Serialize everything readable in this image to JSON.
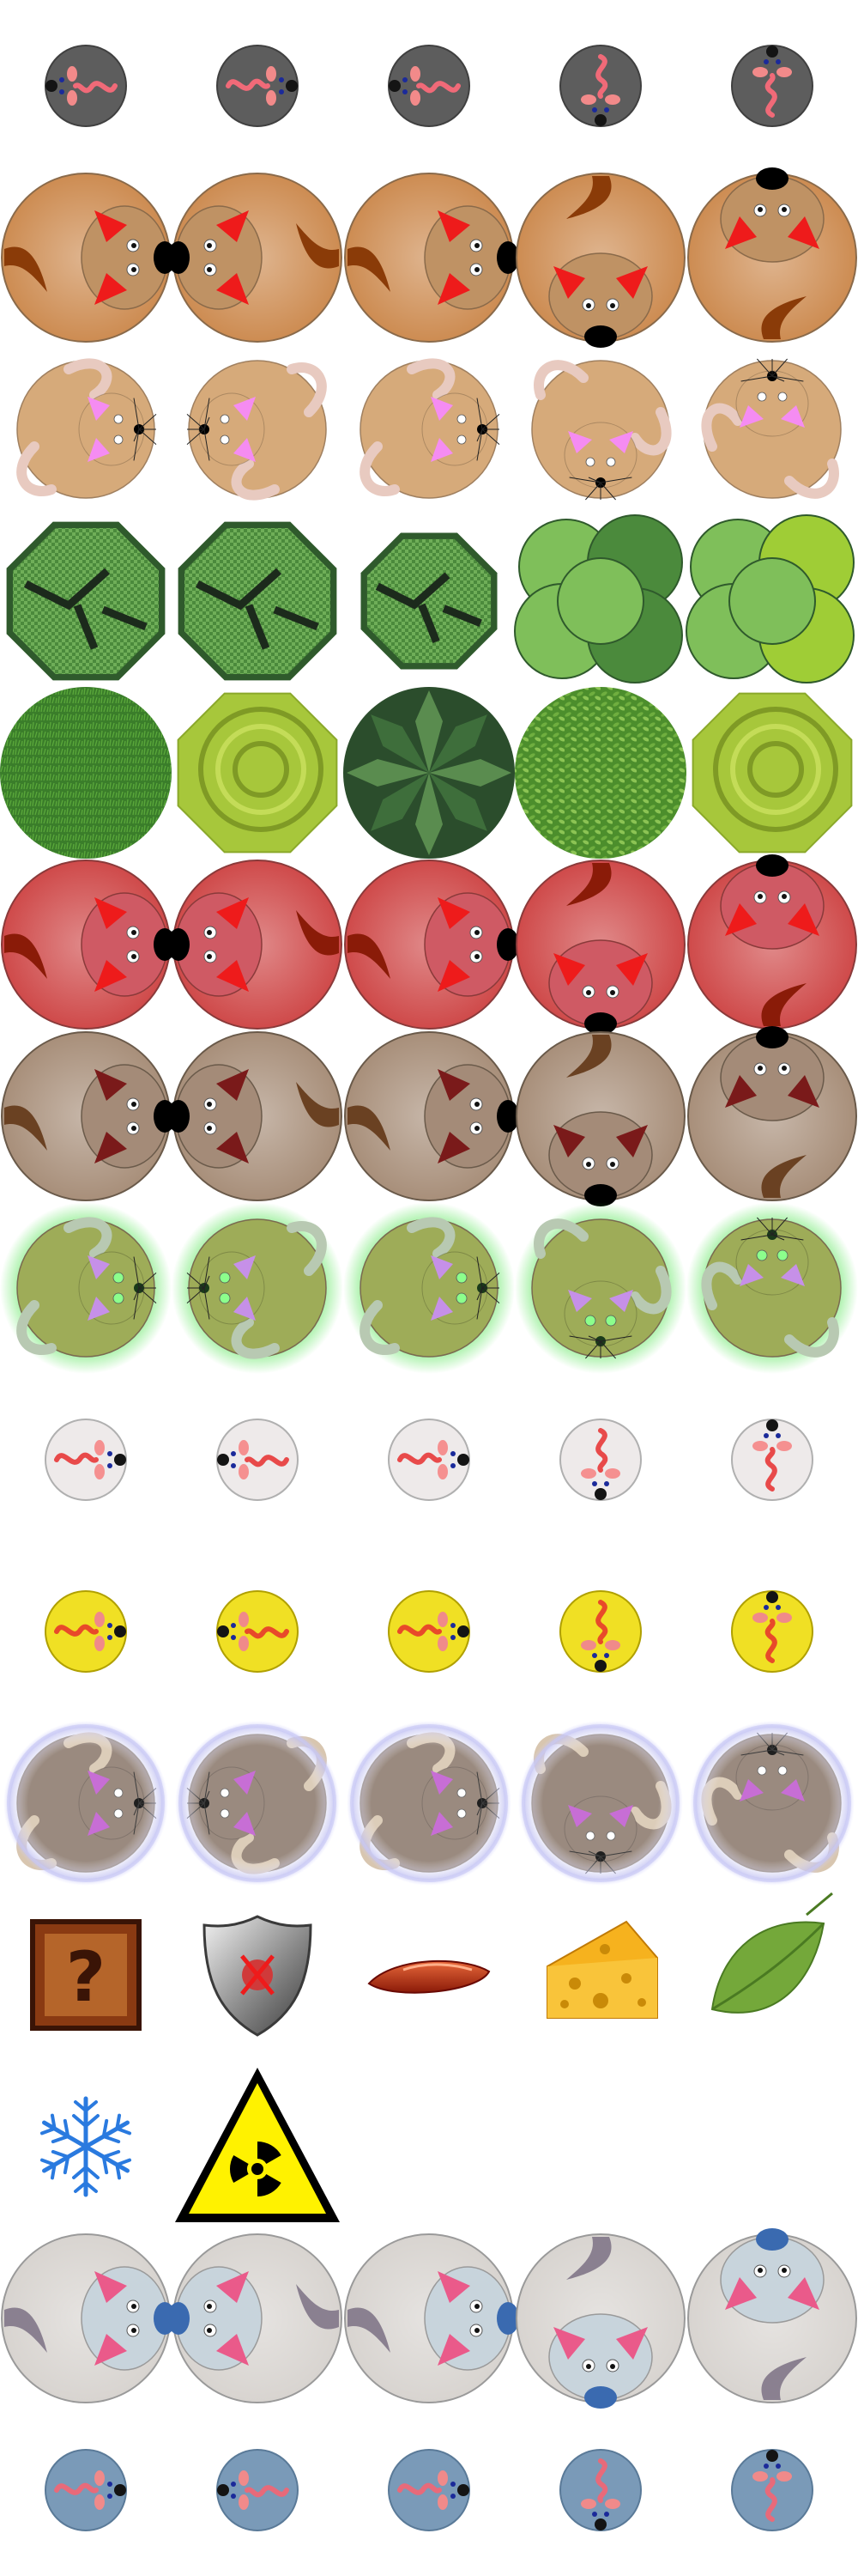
{
  "sheet": {
    "columns": 5,
    "rows": [
      {
        "name": "small-gray-mouse",
        "kind": "token-small",
        "colors": {
          "body": "#5d5d5d",
          "tail": "#f06a78",
          "ear": "#f28a8a",
          "eye": "#1b2a9a",
          "nose": "#141414",
          "rim": "#404040"
        },
        "frames": [
          "left",
          "right",
          "left",
          "down",
          "up"
        ]
      },
      {
        "name": "large-orange-hamster",
        "kind": "token-large",
        "colors": {
          "body": "#cd8c52",
          "head": "#bf9264",
          "ear": "#ee1b1b",
          "nose": "#000000",
          "tail": "#8a3b08",
          "rim": "#8a6a4a"
        },
        "frames": [
          "right",
          "left",
          "right",
          "down",
          "up"
        ]
      },
      {
        "name": "tan-mouse-whiskers",
        "kind": "mouse",
        "colors": {
          "body": "#d6aa7a",
          "ear": "#f58cf2",
          "tail": "#e8cac0",
          "nose": "#000000",
          "rim": "#a08060"
        },
        "frames": [
          "right",
          "left",
          "right",
          "down",
          "up"
        ]
      },
      {
        "name": "cabbage-plants",
        "kind": "plant",
        "colors": {
          "dark": "#2f5a2c",
          "mid": "#4b8a3c",
          "light": "#7fbf5a",
          "lime": "#9fcd36"
        },
        "frames": [
          "cabbage",
          "cabbage",
          "cabbage-small",
          "lettuce",
          "lettuce-bright"
        ]
      },
      {
        "name": "leafy-greens",
        "kind": "plant",
        "colors": {
          "grass": "#3a7d2a",
          "lime": "#a7c73b",
          "dark": "#2b4d2c",
          "leaf": "#5c9e35"
        },
        "frames": [
          "grass",
          "lime-swirl",
          "dark-leaf",
          "leaf-pile",
          "lime-head"
        ]
      },
      {
        "name": "red-hamster",
        "kind": "token-large",
        "colors": {
          "body": "#cf4a4a",
          "head": "#cf5a64",
          "ear": "#ee1b1b",
          "nose": "#000000",
          "tail": "#8a1b08",
          "rim": "#8a3a3a"
        },
        "frames": [
          "right",
          "left",
          "right",
          "down",
          "up"
        ]
      },
      {
        "name": "brown-hamster",
        "kind": "token-large",
        "colors": {
          "body": "#a88f7a",
          "head": "#a48b78",
          "ear": "#7a1a1a",
          "nose": "#000000",
          "tail": "#6a4122",
          "rim": "#6a5a4a"
        },
        "frames": [
          "right",
          "left",
          "right",
          "down",
          "up"
        ]
      },
      {
        "name": "glowing-mouse",
        "kind": "mouse-glow",
        "colors": {
          "body": "#9eac58",
          "glow": "#39e039",
          "ear": "#c690e8",
          "eye": "#8cff8c",
          "tail": "#b8c9b2",
          "nose": "#1a3a1a"
        },
        "frames": [
          "right",
          "left",
          "right",
          "down",
          "up"
        ]
      },
      {
        "name": "white-mouse-small",
        "kind": "token-small",
        "colors": {
          "body": "#eeeaea",
          "tail": "#e84a4a",
          "ear": "#f59090",
          "eye": "#1b2a9a",
          "nose": "#141414",
          "rim": "#b0b0b0"
        },
        "frames": [
          "right",
          "left",
          "right",
          "down",
          "up"
        ]
      },
      {
        "name": "yellow-mouse-small",
        "kind": "token-small",
        "colors": {
          "body": "#f0e024",
          "tail": "#e84a2a",
          "ear": "#f08a8a",
          "eye": "#1b2a9a",
          "nose": "#141414",
          "rim": "#b0a000"
        },
        "frames": [
          "right",
          "left",
          "right",
          "down",
          "up"
        ]
      },
      {
        "name": "bubble-mouse",
        "kind": "mouse-bubble",
        "colors": {
          "body": "#8c7a6e",
          "bubble": "#c8c8f5",
          "ear": "#c05ad0",
          "tail": "#d8c6b0",
          "nose": "#000000"
        },
        "frames": [
          "right",
          "left",
          "right",
          "down",
          "up"
        ]
      },
      {
        "name": "powerups",
        "kind": "items",
        "items": [
          {
            "name": "mystery-crate",
            "symbol": "?",
            "color": "#8a3a12"
          },
          {
            "name": "shield",
            "color": "#8a8a8a"
          },
          {
            "name": "sausage",
            "color": "#c8361a"
          },
          {
            "name": "cheese",
            "color": "#f6b21e"
          },
          {
            "name": "leaf",
            "color": "#74a83a"
          }
        ]
      },
      {
        "name": "hazards",
        "kind": "items",
        "items": [
          {
            "name": "snowflake",
            "color": "#2a7adf"
          },
          {
            "name": "radiation-sign",
            "color": "#fff200"
          }
        ]
      },
      {
        "name": "frost-hamster",
        "kind": "token-large",
        "colors": {
          "body": "#d8d4d0",
          "head": "#c8d4dc",
          "ear": "#ea5a8a",
          "nose": "#3a6ab0",
          "tail": "#8a8090",
          "rim": "#9a9a9a"
        },
        "frames": [
          "right",
          "left",
          "right",
          "down",
          "up"
        ]
      },
      {
        "name": "frost-mouse-small",
        "kind": "token-small",
        "colors": {
          "body": "#7a9ab8",
          "tail": "#e86a7a",
          "ear": "#f08a8a",
          "eye": "#1b2a9a",
          "nose": "#141414",
          "rim": "#5a7a98"
        },
        "frames": [
          "right",
          "left",
          "right",
          "down",
          "up"
        ]
      }
    ]
  }
}
